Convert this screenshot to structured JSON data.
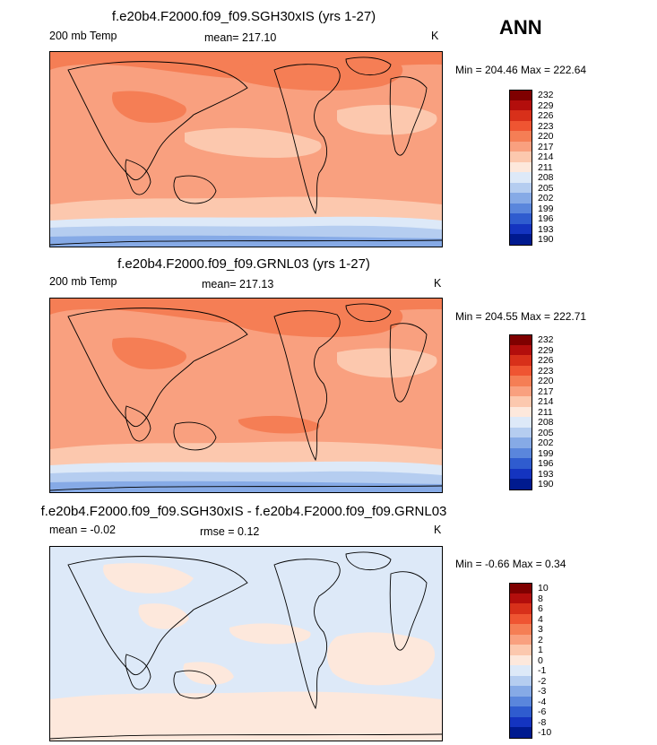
{
  "season": "ANN",
  "panels": [
    {
      "title": "f.e20b4.F2000.f09_f09.SGH30xIS (yrs 1-27)",
      "left_label": "200 mb Temp",
      "mid_label": "mean= 217.10",
      "units": "K",
      "minmax": "Min = 204.46 Max = 222.64",
      "levels": [
        "232",
        "229",
        "226",
        "223",
        "220",
        "217",
        "214",
        "211",
        "208",
        "205",
        "202",
        "199",
        "196",
        "193",
        "190"
      ],
      "colors": [
        "#7f0000",
        "#b30e0c",
        "#d8301a",
        "#ef5532",
        "#f57e55",
        "#f9a07f",
        "#fcc8ae",
        "#fde8dc",
        "#dde9f8",
        "#b5cdf0",
        "#86aae6",
        "#5a86dc",
        "#2f5ccf",
        "#1434c0",
        "#001a8f"
      ]
    },
    {
      "title": "f.e20b4.F2000.f09_f09.GRNL03 (yrs 1-27)",
      "left_label": "200 mb Temp",
      "mid_label": "mean= 217.13",
      "units": "K",
      "minmax": "Min = 204.55 Max = 222.71",
      "levels": [
        "232",
        "229",
        "226",
        "223",
        "220",
        "217",
        "214",
        "211",
        "208",
        "205",
        "202",
        "199",
        "196",
        "193",
        "190"
      ],
      "colors": [
        "#7f0000",
        "#b30e0c",
        "#d8301a",
        "#ef5532",
        "#f57e55",
        "#f9a07f",
        "#fcc8ae",
        "#fde8dc",
        "#dde9f8",
        "#b5cdf0",
        "#86aae6",
        "#5a86dc",
        "#2f5ccf",
        "#1434c0",
        "#001a8f"
      ]
    },
    {
      "title": "f.e20b4.F2000.f09_f09.SGH30xIS - f.e20b4.F2000.f09_f09.GRNL03",
      "left_label": "mean =  -0.02",
      "mid_label": "rmse =   0.12",
      "units": "K",
      "minmax": "Min =  -0.66 Max =   0.34",
      "levels": [
        "10",
        "8",
        "6",
        "4",
        "3",
        "2",
        "1",
        "0",
        "-1",
        "-2",
        "-3",
        "-4",
        "-6",
        "-8",
        "-10"
      ],
      "colors": [
        "#7f0000",
        "#b30e0c",
        "#d8301a",
        "#ef5532",
        "#f57e55",
        "#f9a07f",
        "#fcc8ae",
        "#fde8dc",
        "#dde9f8",
        "#b5cdf0",
        "#86aae6",
        "#5a86dc",
        "#2f5ccf",
        "#1434c0",
        "#001a8f"
      ]
    }
  ],
  "chart_data": [
    {
      "type": "heatmap",
      "title": "f.e20b4.F2000.f09_f09.SGH30xIS (yrs 1-27)",
      "variable": "200 mb Temp",
      "units": "K",
      "mean": 217.1,
      "min": 204.46,
      "max": 222.64,
      "contour_levels": [
        190,
        193,
        196,
        199,
        202,
        205,
        208,
        211,
        214,
        217,
        220,
        223,
        226,
        229,
        232
      ]
    },
    {
      "type": "heatmap",
      "title": "f.e20b4.F2000.f09_f09.GRNL03 (yrs 1-27)",
      "variable": "200 mb Temp",
      "units": "K",
      "mean": 217.13,
      "min": 204.55,
      "max": 222.71,
      "contour_levels": [
        190,
        193,
        196,
        199,
        202,
        205,
        208,
        211,
        214,
        217,
        220,
        223,
        226,
        229,
        232
      ]
    },
    {
      "type": "heatmap",
      "title": "f.e20b4.F2000.f09_f09.SGH30xIS - f.e20b4.F2000.f09_f09.GRNL03",
      "units": "K",
      "mean": -0.02,
      "rmse": 0.12,
      "min": -0.66,
      "max": 0.34,
      "contour_levels": [
        -10,
        -8,
        -6,
        -4,
        -3,
        -2,
        -1,
        0,
        1,
        2,
        3,
        4,
        6,
        8,
        10
      ]
    }
  ]
}
